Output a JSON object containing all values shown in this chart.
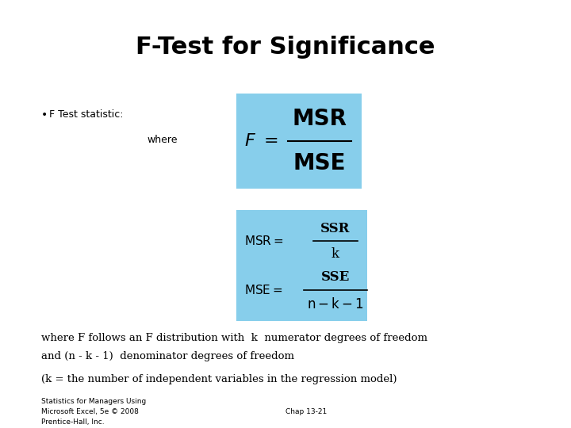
{
  "title": "F-Test for Significance",
  "title_fontsize": 22,
  "bg_color": "#ffffff",
  "box_color": "#87CEEB",
  "bullet_text": "F Test statistic:",
  "where_text": "where",
  "text_color": "#000000",
  "bottom_text1": "where F follows an F distribution with  k  numerator degrees of freedom",
  "bottom_text2": "and (n - k - 1)  denominator degrees of freedom",
  "bottom_text3": "(k = the number of independent variables in the regression model)",
  "footer_left1": "Statistics for Managers Using",
  "footer_left2": "Microsoft Excel, 5e © 2008",
  "footer_left3": "Prentice-Hall, Inc.",
  "footer_right": "Chap 13-21"
}
